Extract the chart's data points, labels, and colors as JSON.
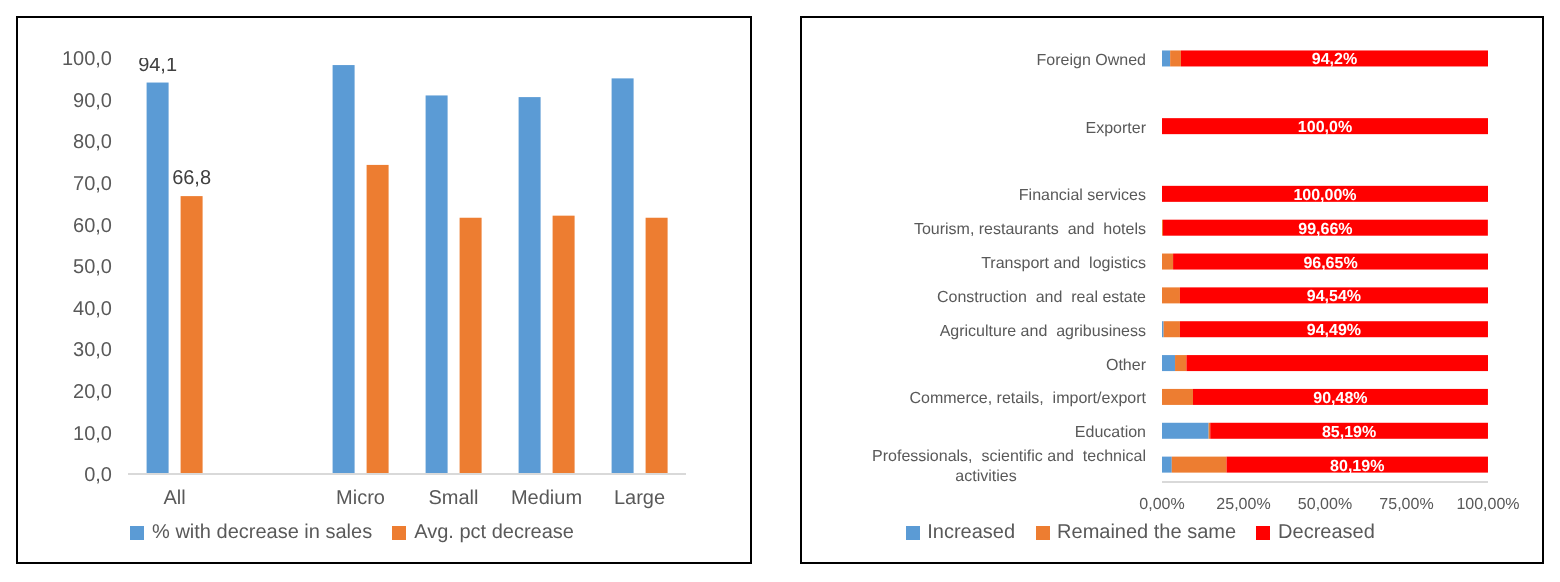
{
  "chart_data": [
    {
      "type": "bar",
      "categories": [
        "All",
        null,
        "Micro",
        "Small",
        "Medium",
        "Large"
      ],
      "series": [
        {
          "name": "% with decrease in sales",
          "color": "#5b9bd5",
          "values": [
            94.1,
            null,
            98.3,
            91.0,
            90.6,
            95.1
          ],
          "value_labels": [
            "94,1",
            null,
            null,
            null,
            null,
            null
          ]
        },
        {
          "name": "Avg. pct decrease",
          "color": "#ed7d31",
          "values": [
            66.8,
            null,
            74.3,
            61.6,
            62.1,
            61.6
          ],
          "value_labels": [
            "66,8",
            null,
            null,
            null,
            null,
            null
          ]
        }
      ],
      "ylim": [
        0,
        100
      ],
      "yticks": [
        {
          "value": 0,
          "label": "0,0"
        },
        {
          "value": 10,
          "label": "10,0"
        },
        {
          "value": 20,
          "label": "20,0"
        },
        {
          "value": 30,
          "label": "30,0"
        },
        {
          "value": 40,
          "label": "40,0"
        },
        {
          "value": 50,
          "label": "50,0"
        },
        {
          "value": 60,
          "label": "60,0"
        },
        {
          "value": 70,
          "label": "70,0"
        },
        {
          "value": 80,
          "label": "80,0"
        },
        {
          "value": 90,
          "label": "90,0"
        },
        {
          "value": 100,
          "label": "100,0"
        }
      ],
      "legend": "bottom"
    },
    {
      "type": "bar",
      "orientation": "horizontal",
      "stacked": true,
      "categories": [
        "Foreign Owned",
        null,
        "Exporter",
        null,
        "Financial services",
        "Tourism, restaurants  and  hotels",
        "Transport and  logistics",
        "Construction  and  real estate",
        "Agriculture and  agribusiness",
        "Other",
        "Commerce, retails,  import/export",
        "Education",
        "Professionals,  scientific and  technical activities"
      ],
      "series": [
        {
          "name": "Increased",
          "color": "#5b9bd5",
          "values": [
            2.5,
            null,
            0,
            null,
            0,
            0,
            0,
            0,
            0.5,
            4.0,
            0,
            14.3,
            3.0
          ]
        },
        {
          "name": "Remained the same",
          "color": "#ed7d31",
          "values": [
            3.3,
            null,
            0,
            null,
            0,
            0.3,
            3.4,
            5.5,
            5.0,
            3.5,
            9.5,
            0.5,
            16.8
          ]
        },
        {
          "name": "Decreased",
          "color": "#ff0000",
          "values": [
            94.2,
            null,
            100,
            null,
            100,
            99.66,
            96.65,
            94.54,
            94.49,
            92.5,
            90.48,
            85.19,
            80.19
          ],
          "value_labels": [
            "94,2%",
            null,
            "100,0%",
            null,
            "100,00%",
            "99,66%",
            "96,65%",
            "94,54%",
            "94,49%",
            null,
            "90,48%",
            "85,19%",
            "80,19%"
          ]
        }
      ],
      "xlim": [
        0,
        100
      ],
      "xticks": [
        {
          "value": 0,
          "label": "0,00%"
        },
        {
          "value": 25,
          "label": "25,00%"
        },
        {
          "value": 50,
          "label": "50,00%"
        },
        {
          "value": 75,
          "label": "75,00%"
        },
        {
          "value": 100,
          "label": "100,00%"
        }
      ],
      "legend": "bottom"
    }
  ]
}
